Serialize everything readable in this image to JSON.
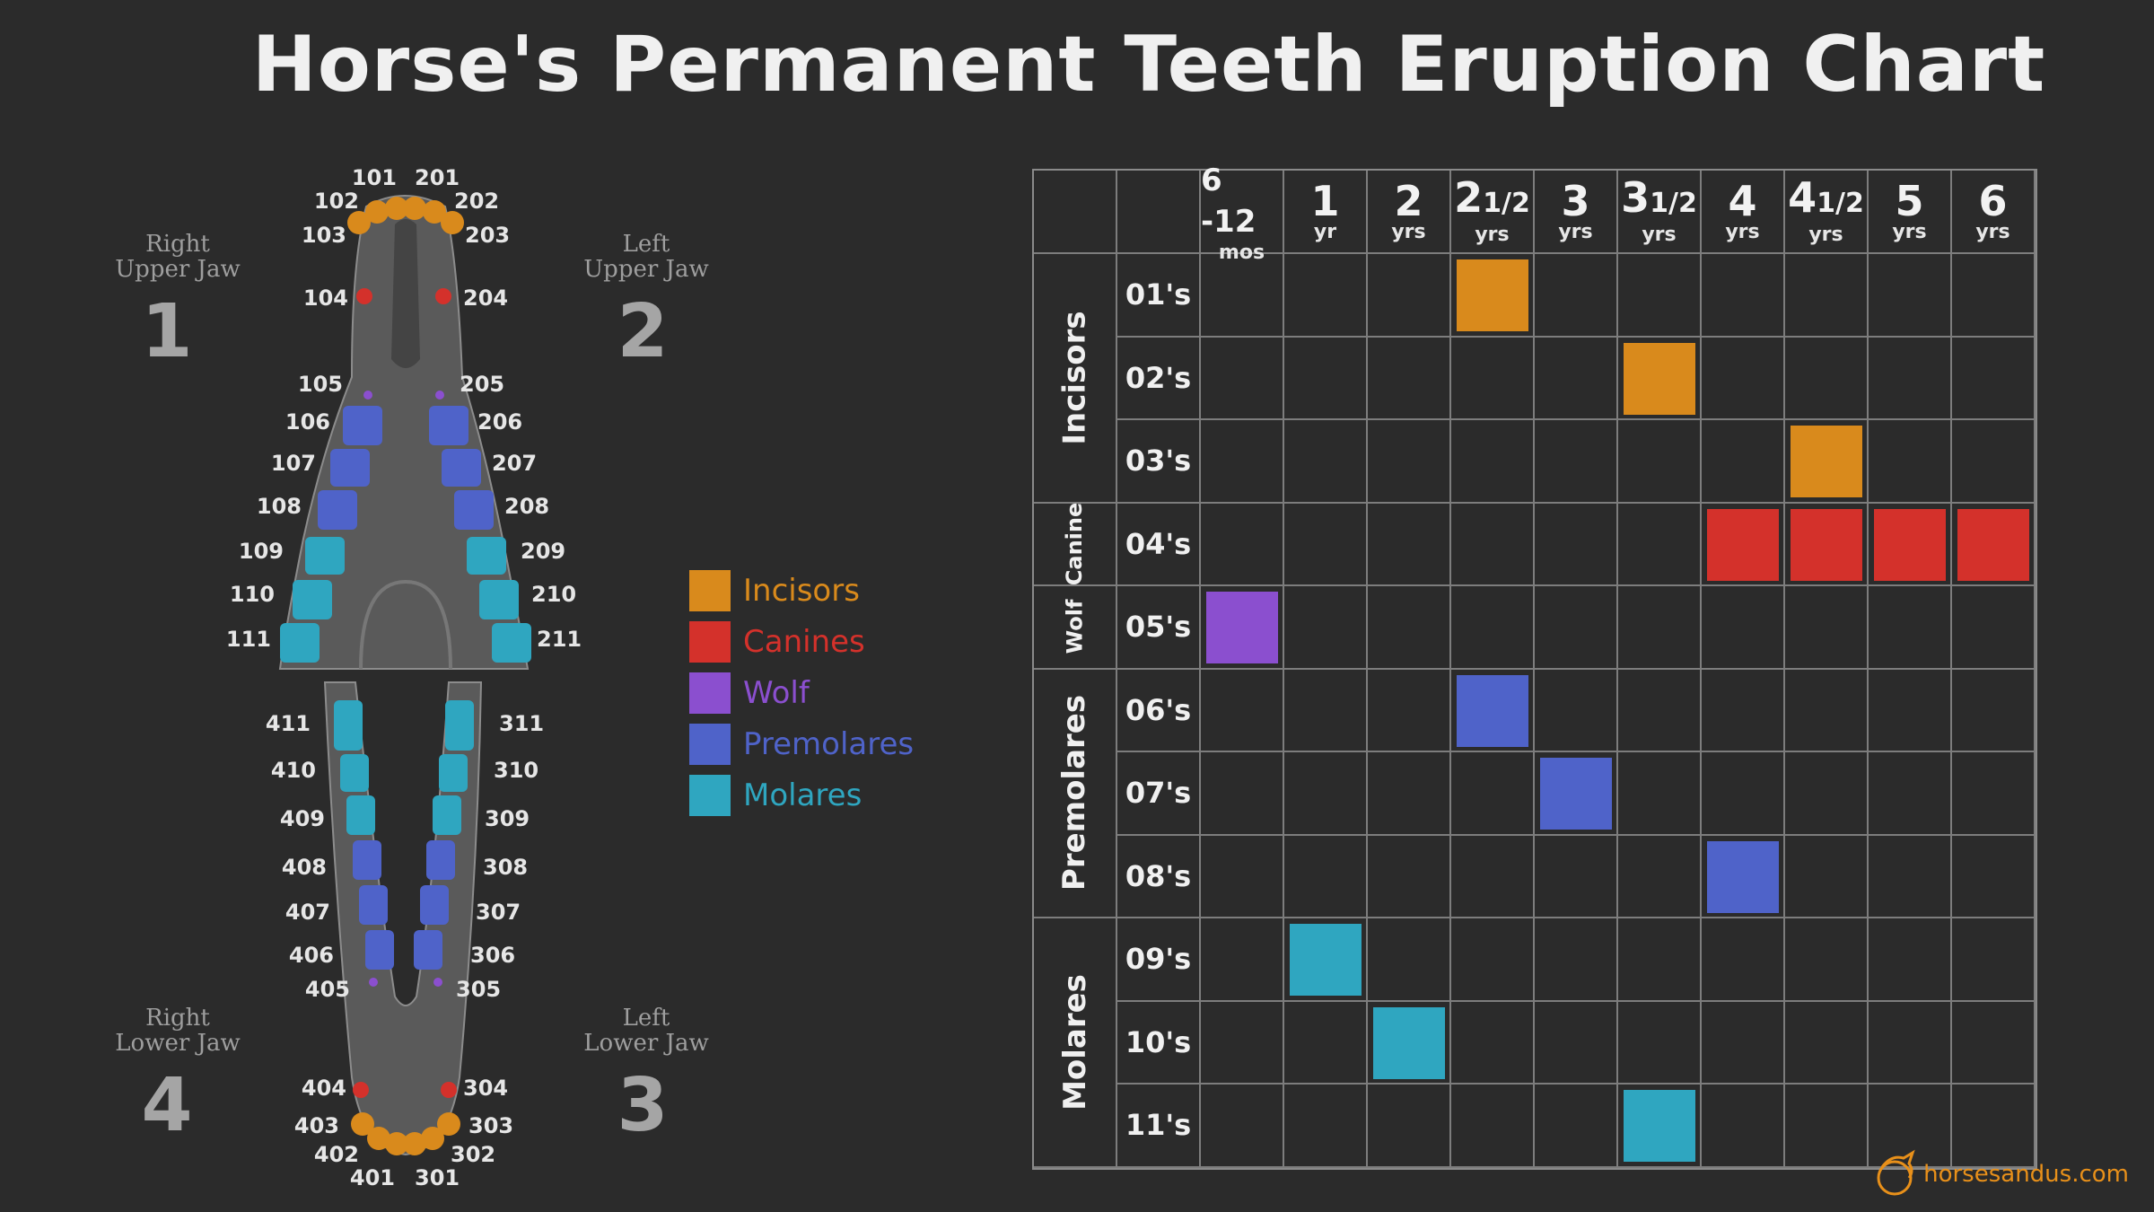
{
  "title": "Horse's Permanent Teeth Eruption Chart",
  "colors": {
    "incisors": "#d98a1c",
    "canines": "#d4312b",
    "wolf": "#8b4fcf",
    "premolares": "#4f63c9",
    "molares": "#2fa6c0"
  },
  "jaws": {
    "right_upper": {
      "label_line1": "Right",
      "label_line2": "Upper Jaw",
      "number": "1"
    },
    "left_upper": {
      "label_line1": "Left",
      "label_line2": "Upper Jaw",
      "number": "2"
    },
    "right_lower": {
      "label_line1": "Right",
      "label_line2": "Lower Jaw",
      "number": "4"
    },
    "left_lower": {
      "label_line1": "Left",
      "label_line2": "Lower Jaw",
      "number": "3"
    }
  },
  "tooth_labels": {
    "upper_right": [
      "101",
      "102",
      "103",
      "104",
      "105",
      "106",
      "107",
      "108",
      "109",
      "110",
      "111"
    ],
    "upper_left": [
      "201",
      "202",
      "203",
      "204",
      "205",
      "206",
      "207",
      "208",
      "209",
      "210",
      "211"
    ],
    "lower_right": [
      "411",
      "410",
      "409",
      "408",
      "407",
      "406",
      "405",
      "404",
      "403",
      "402",
      "401"
    ],
    "lower_left": [
      "311",
      "310",
      "309",
      "308",
      "307",
      "306",
      "305",
      "304",
      "303",
      "302",
      "301"
    ]
  },
  "legend": [
    {
      "label": "Incisors",
      "color": "#d98a1c"
    },
    {
      "label": "Canines",
      "color": "#d4312b"
    },
    {
      "label": "Wolf",
      "color": "#8b4fcf"
    },
    {
      "label": "Premolares",
      "color": "#4f63c9"
    },
    {
      "label": "Molares",
      "color": "#2fa6c0"
    }
  ],
  "columns": [
    {
      "main": "6 -12",
      "frac": "",
      "unit": "mos"
    },
    {
      "main": "1",
      "frac": "",
      "unit": "yr"
    },
    {
      "main": "2",
      "frac": "",
      "unit": "yrs"
    },
    {
      "main": "2",
      "frac": "1/2",
      "unit": "yrs"
    },
    {
      "main": "3",
      "frac": "",
      "unit": "yrs"
    },
    {
      "main": "3",
      "frac": "1/2",
      "unit": "yrs"
    },
    {
      "main": "4",
      "frac": "",
      "unit": "yrs"
    },
    {
      "main": "4",
      "frac": "1/2",
      "unit": "yrs"
    },
    {
      "main": "5",
      "frac": "",
      "unit": "yrs"
    },
    {
      "main": "6",
      "frac": "",
      "unit": "yrs"
    }
  ],
  "groups": [
    {
      "label": "Incisors",
      "rows": 3
    },
    {
      "label": "Canine",
      "rows": 1
    },
    {
      "label": "Wolf",
      "rows": 1
    },
    {
      "label": "Premolares",
      "rows": 3
    },
    {
      "label": "Molares",
      "rows": 3
    }
  ],
  "rows": [
    {
      "label": "01's",
      "type": "incisors",
      "cols": [
        3
      ]
    },
    {
      "label": "02's",
      "type": "incisors",
      "cols": [
        5
      ]
    },
    {
      "label": "03's",
      "type": "incisors",
      "cols": [
        7
      ]
    },
    {
      "label": "04's",
      "type": "canines",
      "cols": [
        6,
        7,
        8,
        9
      ]
    },
    {
      "label": "05's",
      "type": "wolf",
      "cols": [
        0
      ]
    },
    {
      "label": "06's",
      "type": "premolares",
      "cols": [
        3
      ]
    },
    {
      "label": "07's",
      "type": "premolares",
      "cols": [
        4
      ]
    },
    {
      "label": "08's",
      "type": "premolares",
      "cols": [
        6
      ]
    },
    {
      "label": "09's",
      "type": "molares",
      "cols": [
        1
      ]
    },
    {
      "label": "10's",
      "type": "molares",
      "cols": [
        2
      ]
    },
    {
      "label": "11's",
      "type": "molares",
      "cols": [
        5
      ]
    }
  ],
  "watermark": "horsesandus.com"
}
